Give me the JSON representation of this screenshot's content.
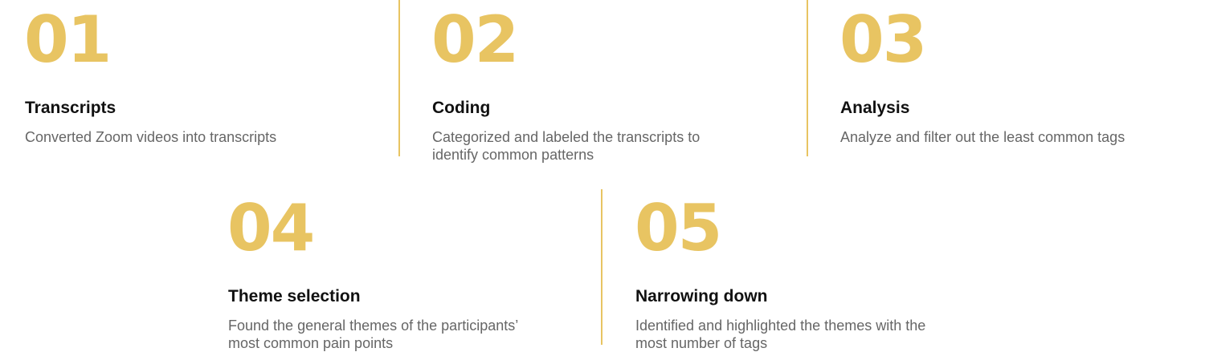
{
  "colors": {
    "accent": "#e8c462",
    "title": "#111111",
    "description": "#666666",
    "background": "#ffffff"
  },
  "steps": [
    {
      "number": "01",
      "title": "Transcripts",
      "description": "Converted Zoom videos into transcripts"
    },
    {
      "number": "02",
      "title": "Coding",
      "description": "Categorized and labeled the transcripts to identify common patterns"
    },
    {
      "number": "03",
      "title": "Analysis",
      "description": "Analyze and filter out the least common tags"
    },
    {
      "number": "04",
      "title": "Theme selection",
      "description": "Found the general themes of the participants’ most common pain points"
    },
    {
      "number": "05",
      "title": "Narrowing down",
      "description": "Identified and highlighted the themes with the most number of tags"
    }
  ]
}
